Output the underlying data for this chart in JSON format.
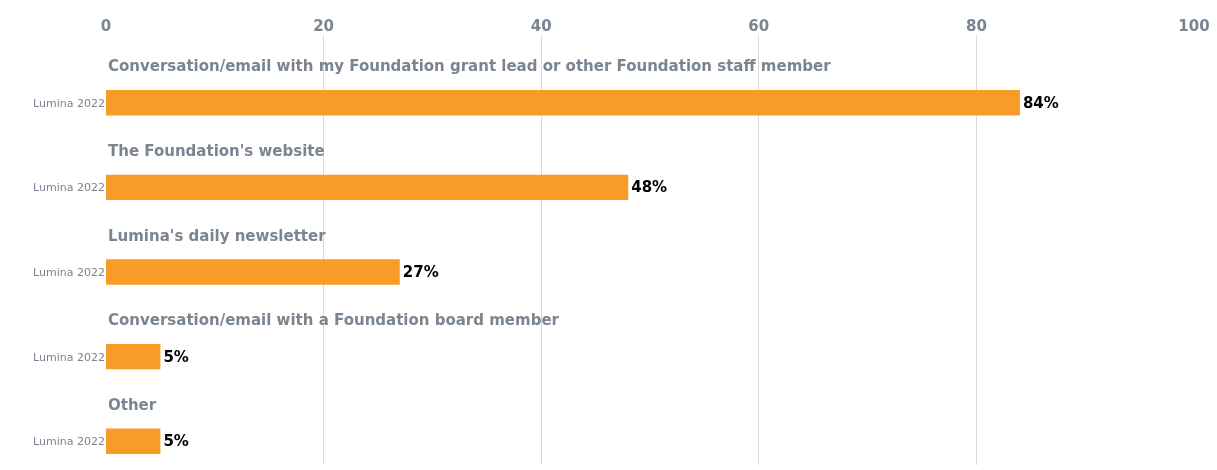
{
  "chart_data": {
    "type": "bar",
    "orientation": "horizontal",
    "categories": [
      "Conversation/email with my Foundation grant lead or other Foundation staff member",
      "The Foundation's website",
      "Lumina's daily newsletter",
      "Conversation/email with a Foundation board member",
      "Other"
    ],
    "series": [
      {
        "name": "Lumina 2022",
        "color": "#f89c27",
        "values": [
          84,
          48,
          27,
          5,
          5
        ],
        "value_labels": [
          "84%",
          "48%",
          "27%",
          "5%",
          "5%"
        ]
      }
    ],
    "xlim": [
      0,
      100
    ],
    "xticks": [
      0,
      20,
      40,
      60,
      80,
      100
    ],
    "grid": "x"
  }
}
